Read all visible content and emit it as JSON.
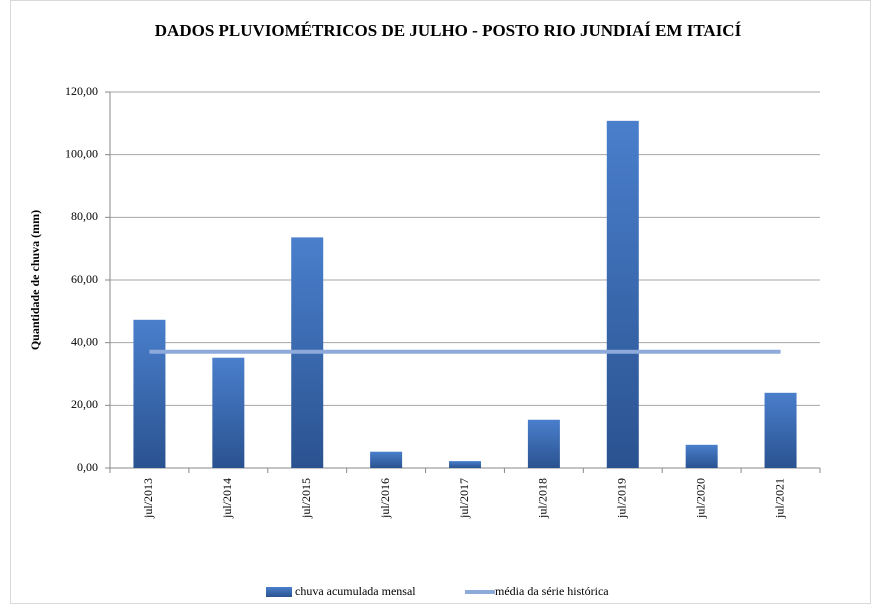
{
  "chart_data": {
    "type": "bar",
    "title": "DADOS PLUVIOMÉTRICOS DE JULHO - POSTO RIO JUNDIAÍ EM ITAICÍ",
    "y_label": "Quantidade de chuva (mm)",
    "categories": [
      "jul/2013",
      "jul/2014",
      "jul/2015",
      "jul/2016",
      "jul/2017",
      "jul/2018",
      "jul/2019",
      "jul/2020",
      "jul/2021"
    ],
    "series": [
      {
        "name": "chuva acumulada mensal",
        "color": "#3a6cb3",
        "values": [
          47.3,
          35.2,
          73.6,
          5.2,
          2.2,
          15.4,
          110.8,
          7.4,
          24.0
        ]
      },
      {
        "name": "média da série histórica",
        "color": "#8eaadb",
        "type": "line",
        "values": [
          37.1,
          37.1,
          37.1,
          37.1,
          37.1,
          37.1,
          37.1,
          37.1,
          37.1
        ]
      }
    ],
    "ylim": [
      0,
      120
    ],
    "yticks": [
      {
        "value": 0,
        "label": "0,00"
      },
      {
        "value": 20,
        "label": "20,00"
      },
      {
        "value": 40,
        "label": "40,00"
      },
      {
        "value": 60,
        "label": "60,00"
      },
      {
        "value": 80,
        "label": "80,00"
      },
      {
        "value": 100,
        "label": "100,00"
      },
      {
        "value": 120,
        "label": "120,00"
      }
    ],
    "grid": true
  }
}
